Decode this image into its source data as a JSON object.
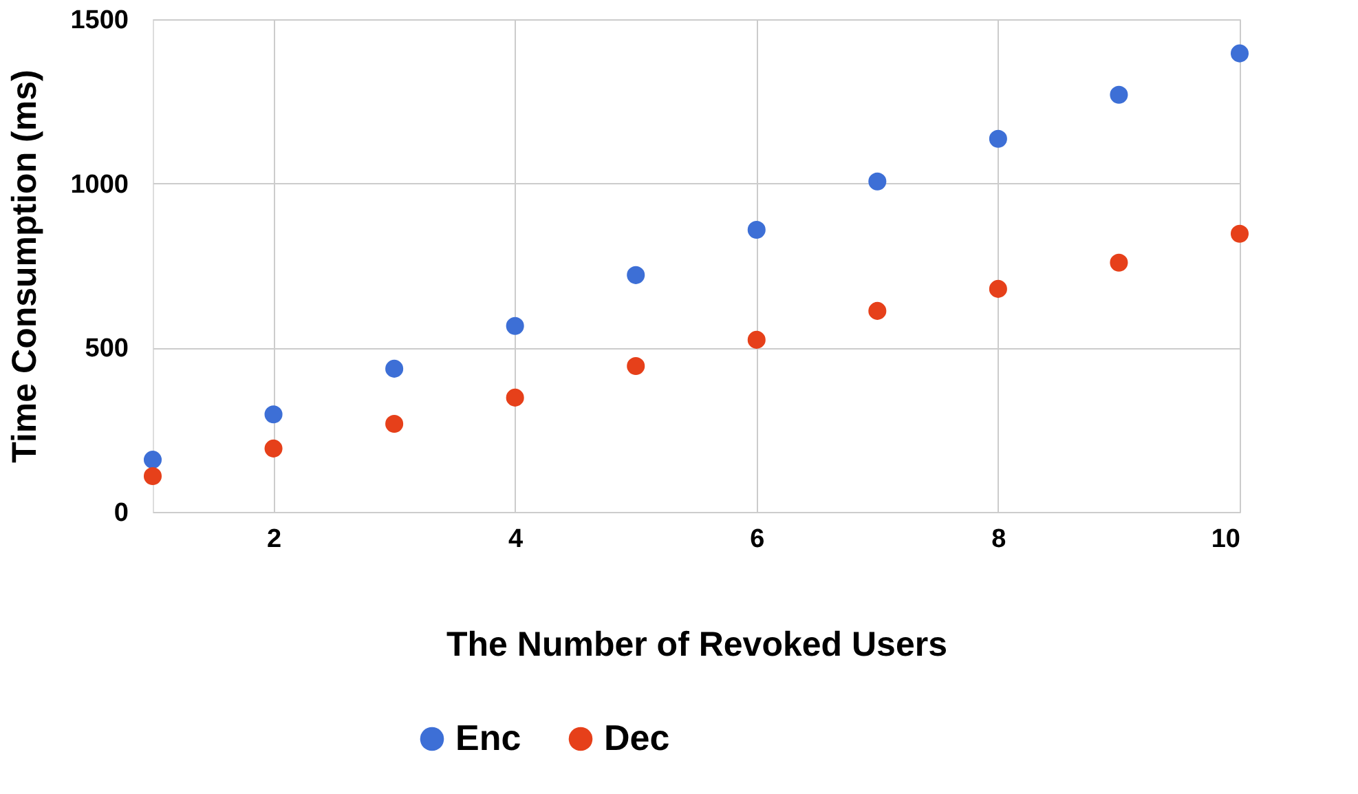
{
  "chart_data": {
    "type": "scatter",
    "xlabel": "The Number of Revoked Users",
    "ylabel": "Time Consumption (ms)",
    "x": [
      1,
      2,
      3,
      4,
      5,
      6,
      7,
      8,
      9,
      10
    ],
    "series": [
      {
        "name": "Enc",
        "color": "#3d6fd6",
        "values": [
          159,
          297,
          436,
          566,
          721,
          859,
          1006,
          1136,
          1270,
          1396
        ]
      },
      {
        "name": "Dec",
        "color": "#e6401a",
        "values": [
          109,
          193,
          268,
          348,
          444,
          524,
          612,
          679,
          759,
          847
        ]
      }
    ],
    "xlim": [
      1,
      10
    ],
    "xticks": [
      2,
      4,
      6,
      8,
      10
    ],
    "ylim": [
      0,
      1500
    ],
    "yticks": [
      0,
      500,
      1000,
      1500
    ],
    "grid": true,
    "legend": "bottom",
    "marker": "circle"
  }
}
